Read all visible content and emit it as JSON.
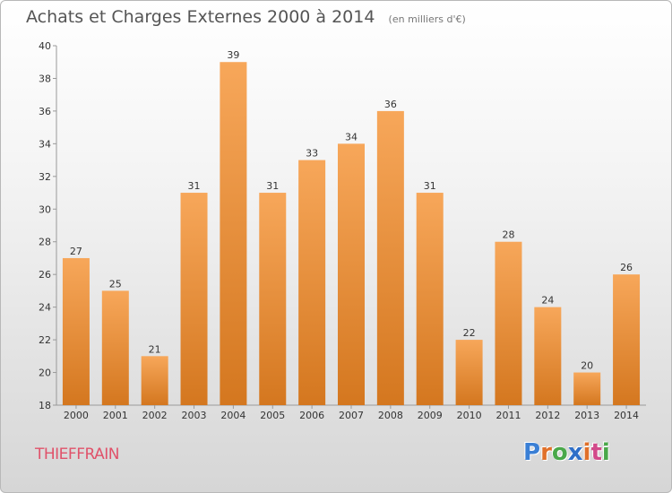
{
  "header": {
    "title": "Achats et Charges Externes 2000 à 2014",
    "unit": "(en milliers d'€)"
  },
  "footer": {
    "commune": "THIEFFRAIN",
    "logo": "Proxiti",
    "logo_colors": [
      "#3a7fd5",
      "#e0702a",
      "#4aa84a",
      "#2f6fc8",
      "#e0702a",
      "#d24a8a",
      "#4aa84a"
    ]
  },
  "chart_data": {
    "type": "bar",
    "title": "Achats et Charges Externes 2000 à 2014",
    "subtitle": "(en milliers d'€)",
    "categories": [
      "2000",
      "2001",
      "2002",
      "2003",
      "2004",
      "2005",
      "2006",
      "2007",
      "2008",
      "2009",
      "2010",
      "2011",
      "2012",
      "2013",
      "2014"
    ],
    "values": [
      27,
      25,
      21,
      31,
      39,
      31,
      33,
      34,
      36,
      31,
      22,
      28,
      24,
      20,
      26
    ],
    "data_labels": [
      "27",
      "25",
      "21",
      "31",
      "39",
      "31",
      "33",
      "34",
      "36",
      "31",
      "22",
      "28",
      "24",
      "20",
      "26"
    ],
    "ylim": [
      18,
      40
    ],
    "yticks": [
      18,
      20,
      22,
      24,
      26,
      28,
      30,
      32,
      34,
      36,
      38,
      40
    ],
    "ytick_labels": [
      "18",
      "20",
      "22",
      "24",
      "26",
      "28",
      "30",
      "32",
      "34",
      "36",
      "38",
      "40"
    ],
    "grid": false,
    "bar_color_top": "#f7a75a",
    "bar_color_bottom": "#d4771f"
  }
}
